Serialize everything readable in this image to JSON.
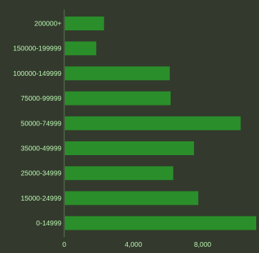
{
  "chart_data": {
    "type": "bar",
    "orientation": "horizontal",
    "categories": [
      "200000+",
      "150000-199999",
      "100000-149999",
      "75000-99999",
      "50000-74999",
      "35000-49999",
      "25000-34999",
      "15000-24999",
      "0-14999"
    ],
    "values": [
      2300,
      1850,
      6100,
      6150,
      10200,
      7500,
      6300,
      7750,
      11100
    ],
    "xlim": [
      0,
      11100
    ],
    "xticks": [
      {
        "value": 0,
        "label": "0"
      },
      {
        "value": 4000,
        "label": "4,000"
      },
      {
        "value": 8000,
        "label": "8,000"
      }
    ],
    "title": "",
    "xlabel": "",
    "ylabel": "",
    "grid": false,
    "legend": "none",
    "colors": {
      "background": "#333a2d",
      "bar": "#2a8f2a",
      "axis": "#5c7a55",
      "text": "#b9f5b0"
    }
  }
}
